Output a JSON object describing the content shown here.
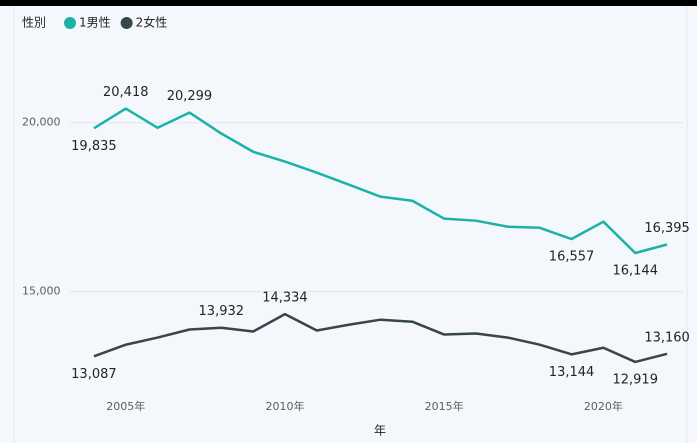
{
  "chart_data": {
    "type": "line",
    "legend_title": "性別",
    "x_label": "年",
    "x": [
      2004,
      2005,
      2006,
      2007,
      2008,
      2009,
      2010,
      2011,
      2012,
      2013,
      2014,
      2015,
      2016,
      2017,
      2018,
      2019,
      2020,
      2021,
      2022
    ],
    "xlim": [
      2003.5,
      2022.5
    ],
    "xticks": [
      {
        "value": 2005,
        "label": "2005年"
      },
      {
        "value": 2010,
        "label": "2010年"
      },
      {
        "value": 2015,
        "label": "2015年"
      },
      {
        "value": 2020,
        "label": "2020年"
      }
    ],
    "ylim": [
      12000,
      22300
    ],
    "yticks": [
      {
        "value": 15000,
        "label": "15,000"
      },
      {
        "value": 20000,
        "label": "20,000"
      }
    ],
    "grid": true,
    "legend": "top-left",
    "series": [
      {
        "name": "1男性",
        "color": "#1ab3a6",
        "values": [
          19835,
          20418,
          19850,
          20299,
          19680,
          19140,
          18850,
          18520,
          18170,
          17810,
          17690,
          17160,
          17100,
          16920,
          16890,
          16557,
          17070,
          16144,
          16395
        ],
        "value_labels": [
          "19,835",
          "20,418",
          null,
          "20,299",
          null,
          null,
          null,
          null,
          null,
          null,
          null,
          null,
          null,
          null,
          null,
          "16,557",
          null,
          "16,144",
          "16,395"
        ]
      },
      {
        "name": "2女性",
        "color": "#374649",
        "values": [
          13087,
          13430,
          13640,
          13880,
          13932,
          13820,
          14334,
          13850,
          14020,
          14170,
          14110,
          13730,
          13760,
          13640,
          13430,
          13144,
          13340,
          12919,
          13160
        ],
        "value_labels": [
          "13,087",
          null,
          null,
          null,
          "13,932",
          null,
          "14,334",
          null,
          null,
          null,
          null,
          null,
          null,
          null,
          null,
          "13,144",
          null,
          "12,919",
          "13,160"
        ]
      }
    ]
  }
}
